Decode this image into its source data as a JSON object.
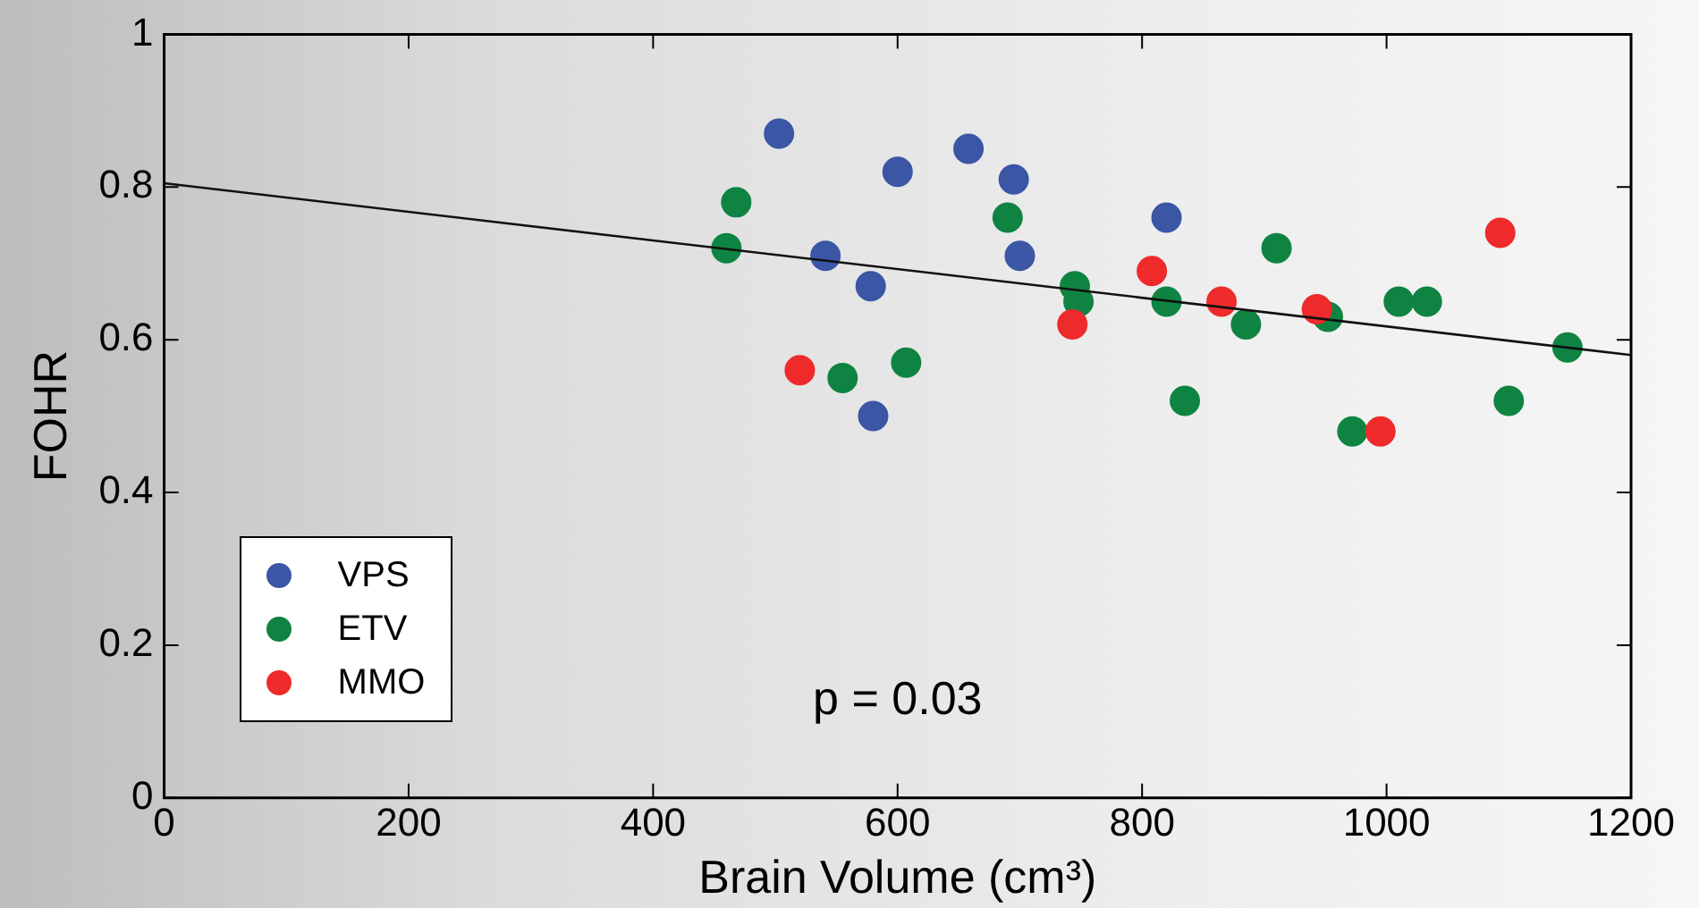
{
  "chart_data": {
    "type": "scatter",
    "xlabel": "Brain Volume (cm³)",
    "ylabel": "FOHR",
    "xlim": [
      0,
      1200
    ],
    "xticks": [
      0,
      200,
      400,
      600,
      800,
      1000,
      1200
    ],
    "ylim": [
      0,
      1
    ],
    "yticks": [
      0,
      0.2,
      0.4,
      0.6,
      0.8,
      1
    ],
    "grid": false,
    "legend": "bottom left",
    "annotations": [
      "p = 0.03"
    ],
    "series": [
      {
        "name": "VPS",
        "color": "#3a56a5",
        "marker": "circle",
        "x": [
          503,
          600,
          658,
          695,
          541,
          578,
          580,
          700,
          820
        ],
        "values": [
          0.87,
          0.82,
          0.85,
          0.81,
          0.71,
          0.67,
          0.5,
          0.71,
          0.76
        ]
      },
      {
        "name": "ETV",
        "color": "#0f8442",
        "marker": "circle",
        "x": [
          460,
          468,
          555,
          607,
          690,
          745,
          748,
          820,
          835,
          885,
          910,
          952,
          972,
          1010,
          1033,
          1100,
          1148
        ],
        "values": [
          0.72,
          0.78,
          0.55,
          0.57,
          0.76,
          0.67,
          0.65,
          0.65,
          0.52,
          0.62,
          0.72,
          0.63,
          0.48,
          0.65,
          0.65,
          0.52,
          0.59
        ]
      },
      {
        "name": "MMO",
        "color": "#ee2a2a",
        "marker": "circle",
        "x": [
          520,
          743,
          808,
          865,
          943,
          995,
          1093
        ],
        "values": [
          0.56,
          0.62,
          0.69,
          0.65,
          0.64,
          0.48,
          0.74
        ]
      },
      {
        "type": "line",
        "color": "#111111",
        "marker": "none",
        "x": [
          0,
          1200
        ],
        "values": [
          0.805,
          0.58
        ]
      }
    ]
  }
}
